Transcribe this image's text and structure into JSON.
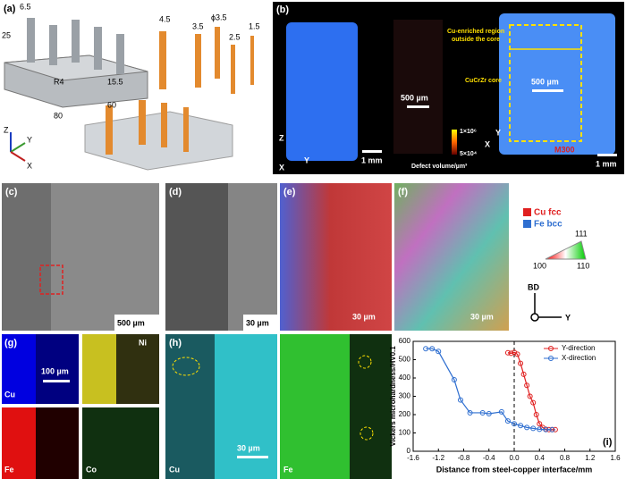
{
  "panels": {
    "a": {
      "label": "(a)",
      "dims": [
        "6.5",
        "25",
        "R4",
        "15.5",
        "80",
        "60",
        "4.5",
        "3.5",
        "ϕ3.5",
        "2.5",
        "1.5"
      ],
      "axes": [
        "Z",
        "Y",
        "X"
      ]
    },
    "b": {
      "label": "(b)",
      "scale_defect": "500 µm",
      "scale_left": "1 mm",
      "colorbar_max": "1×10⁶",
      "colorbar_min": "5×10⁴",
      "colorbar_title": "Defect volume/µm³",
      "region_label": [
        "Cu-enriched region",
        "outside the core"
      ],
      "core_label": "CuCrZr core",
      "scale_inner": "500 µm",
      "sample": "M300",
      "scale_right": "1 mm",
      "axes_left": [
        "Z",
        "Y",
        "X"
      ],
      "axes_right": [
        "Y",
        "X"
      ]
    },
    "c": {
      "label": "(c)",
      "scale": "500 µm"
    },
    "d": {
      "label": "(d)",
      "scale": "30 µm"
    },
    "e": {
      "label": "(e)",
      "scale": "30 µm"
    },
    "f": {
      "label": "(f)",
      "scale": "30 µm"
    },
    "phase_legend": [
      "Cu fcc",
      "Fe bcc"
    ],
    "ipf": {
      "top": "111",
      "left": "100",
      "right": "110",
      "bd": "BD",
      "y": "Y"
    },
    "g": {
      "label": "(g)",
      "maps": [
        "Cu",
        "Ni",
        "Fe",
        "Co"
      ],
      "scale": "100 µm"
    },
    "h": {
      "label": "(h)",
      "maps": [
        "Cu",
        "Fe"
      ],
      "scale": "30 µm"
    }
  },
  "chart_data": {
    "type": "line",
    "panel_label": "(i)",
    "x_label": "Distance from steel-copper interface/mm",
    "y_label": "Vickers microhardness/HV0.1",
    "xlim": [
      -1.6,
      1.6
    ],
    "xticks": [
      -1.6,
      -1.2,
      -0.8,
      -0.4,
      {
        "value": 0,
        "label": "0.0"
      },
      0.4,
      0.8,
      1.2,
      1.6
    ],
    "ylim": [
      0,
      600
    ],
    "yticks": [
      0,
      100,
      200,
      300,
      400,
      500,
      600
    ],
    "legend": "upper right",
    "series": [
      {
        "name": "Y-direction",
        "color": "#e02020",
        "x": [
          -0.1,
          -0.05,
          0,
          0.05,
          0.1,
          0.15,
          0.2,
          0.25,
          0.3,
          0.35,
          0.4,
          0.45,
          0.5,
          0.55,
          0.6,
          0.65
        ],
        "values": [
          538,
          535,
          540,
          530,
          480,
          420,
          360,
          300,
          265,
          200,
          150,
          130,
          120,
          118,
          118,
          118
        ]
      },
      {
        "name": "X-direction",
        "color": "#2f6fd0",
        "x": [
          -1.4,
          -1.3,
          -1.2,
          -0.95,
          -0.85,
          -0.7,
          -0.5,
          -0.4,
          -0.2,
          -0.1,
          0,
          0.1,
          0.2,
          0.3,
          0.4,
          0.5,
          0.6
        ],
        "values": [
          560,
          560,
          545,
          390,
          280,
          210,
          210,
          205,
          215,
          165,
          150,
          140,
          130,
          125,
          120,
          118,
          118
        ]
      }
    ]
  }
}
